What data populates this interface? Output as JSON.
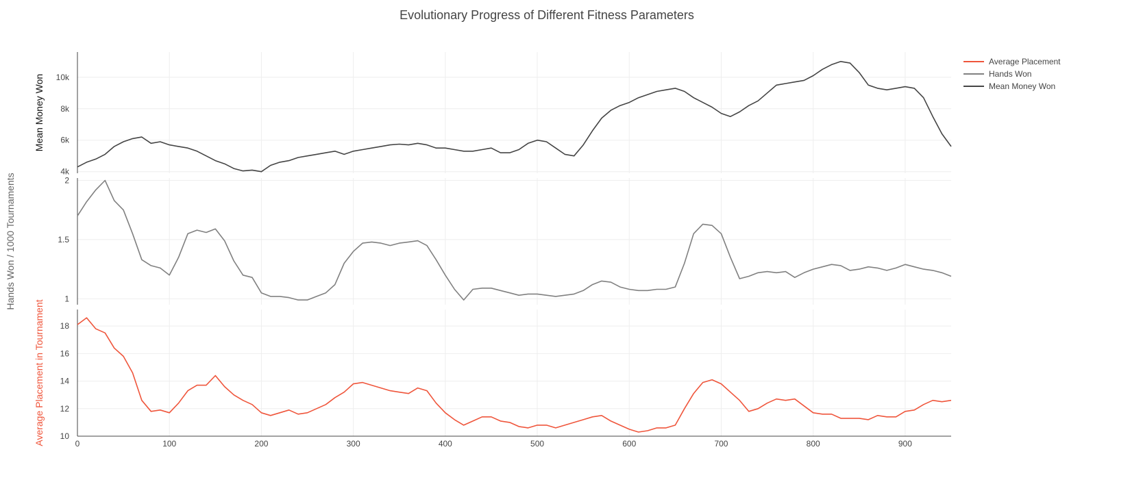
{
  "chart_data": {
    "type": "line",
    "title": "Evolutionary Progress of Different Fitness Parameters",
    "xlim": [
      0,
      950
    ],
    "xticks": [
      0,
      100,
      200,
      300,
      400,
      500,
      600,
      700,
      800,
      900
    ],
    "xtick_labels": [
      "0",
      "100",
      "200",
      "300",
      "400",
      "500",
      "600",
      "700",
      "800",
      "900"
    ],
    "grid": true,
    "legend_position": "top-right",
    "panels": [
      {
        "series": "Mean Money Won",
        "ylabel": "Mean Money Won",
        "ylim": [
          3900,
          11600
        ],
        "yticks": [
          4000,
          6000,
          8000,
          10000
        ],
        "ytick_labels": [
          "4k",
          "6k",
          "8k",
          "10k"
        ]
      },
      {
        "series": "Hands Won",
        "ylabel": "Hands Won / 1000 Tournaments",
        "ylim": [
          0.95,
          2.02
        ],
        "yticks": [
          1,
          1.5,
          2
        ],
        "ytick_labels": [
          "1",
          "1.5",
          "2"
        ]
      },
      {
        "series": "Average Placement",
        "ylabel": "Average Placement in Tournament",
        "ylim": [
          10,
          19.2
        ],
        "yticks": [
          10,
          12,
          14,
          16,
          18
        ],
        "ytick_labels": [
          "10",
          "12",
          "14",
          "16",
          "18"
        ]
      }
    ],
    "series": [
      {
        "name": "Average Placement",
        "color": "#ef553b",
        "x": [
          0,
          10,
          20,
          30,
          40,
          50,
          60,
          70,
          80,
          90,
          100,
          110,
          120,
          130,
          140,
          150,
          160,
          170,
          180,
          190,
          200,
          210,
          220,
          230,
          240,
          250,
          260,
          270,
          280,
          290,
          300,
          310,
          320,
          330,
          340,
          350,
          360,
          370,
          380,
          390,
          400,
          410,
          420,
          430,
          440,
          450,
          460,
          470,
          480,
          490,
          500,
          510,
          520,
          530,
          540,
          550,
          560,
          570,
          580,
          590,
          600,
          610,
          620,
          630,
          640,
          650,
          660,
          670,
          680,
          690,
          700,
          710,
          720,
          730,
          740,
          750,
          760,
          770,
          780,
          790,
          800,
          810,
          820,
          830,
          840,
          850,
          860,
          870,
          880,
          890,
          900,
          910,
          920,
          930,
          940,
          950
        ],
        "y": [
          18.1,
          18.6,
          17.8,
          17.5,
          16.4,
          15.8,
          14.6,
          12.6,
          11.8,
          11.9,
          11.7,
          12.4,
          13.3,
          13.7,
          13.7,
          14.4,
          13.6,
          13.0,
          12.6,
          12.3,
          11.7,
          11.5,
          11.7,
          11.9,
          11.6,
          11.7,
          12.0,
          12.3,
          12.8,
          13.2,
          13.8,
          13.9,
          13.7,
          13.5,
          13.3,
          13.2,
          13.1,
          13.5,
          13.3,
          12.4,
          11.7,
          11.2,
          10.8,
          11.1,
          11.4,
          11.4,
          11.1,
          11.0,
          10.7,
          10.6,
          10.8,
          10.8,
          10.6,
          10.8,
          11.0,
          11.2,
          11.4,
          11.5,
          11.1,
          10.8,
          10.5,
          10.3,
          10.4,
          10.6,
          10.6,
          10.8,
          12.0,
          13.1,
          13.9,
          14.1,
          13.8,
          13.2,
          12.6,
          11.8,
          12.0,
          12.4,
          12.7,
          12.6,
          12.7,
          12.2,
          11.7,
          11.6,
          11.6,
          11.3,
          11.3,
          11.3,
          11.2,
          11.5,
          11.4,
          11.4,
          11.8,
          11.9,
          12.3,
          12.6,
          12.5,
          12.6
        ]
      },
      {
        "name": "Hands Won",
        "color": "#808080",
        "x": [
          0,
          10,
          20,
          30,
          40,
          50,
          60,
          70,
          80,
          90,
          100,
          110,
          120,
          130,
          140,
          150,
          160,
          170,
          180,
          190,
          200,
          210,
          220,
          230,
          240,
          250,
          260,
          270,
          280,
          290,
          300,
          310,
          320,
          330,
          340,
          350,
          360,
          370,
          380,
          390,
          400,
          410,
          420,
          430,
          440,
          450,
          460,
          470,
          480,
          490,
          500,
          510,
          520,
          530,
          540,
          550,
          560,
          570,
          580,
          590,
          600,
          610,
          620,
          630,
          640,
          650,
          660,
          670,
          680,
          690,
          700,
          710,
          720,
          730,
          740,
          750,
          760,
          770,
          780,
          790,
          800,
          810,
          820,
          830,
          840,
          850,
          860,
          870,
          880,
          890,
          900,
          910,
          920,
          930,
          940,
          950
        ],
        "y": [
          1.7,
          1.82,
          1.92,
          2.0,
          1.83,
          1.75,
          1.55,
          1.33,
          1.28,
          1.26,
          1.2,
          1.35,
          1.55,
          1.58,
          1.56,
          1.59,
          1.49,
          1.32,
          1.2,
          1.18,
          1.05,
          1.02,
          1.02,
          1.01,
          0.99,
          0.99,
          1.02,
          1.05,
          1.12,
          1.3,
          1.4,
          1.47,
          1.48,
          1.47,
          1.45,
          1.47,
          1.48,
          1.49,
          1.45,
          1.33,
          1.2,
          1.08,
          0.99,
          1.08,
          1.09,
          1.09,
          1.07,
          1.05,
          1.03,
          1.04,
          1.04,
          1.03,
          1.02,
          1.03,
          1.04,
          1.07,
          1.12,
          1.15,
          1.14,
          1.1,
          1.08,
          1.07,
          1.07,
          1.08,
          1.08,
          1.1,
          1.3,
          1.55,
          1.63,
          1.62,
          1.55,
          1.35,
          1.17,
          1.19,
          1.22,
          1.23,
          1.22,
          1.23,
          1.18,
          1.22,
          1.25,
          1.27,
          1.29,
          1.28,
          1.24,
          1.25,
          1.27,
          1.26,
          1.24,
          1.26,
          1.29,
          1.27,
          1.25,
          1.24,
          1.22,
          1.19
        ]
      },
      {
        "name": "Mean Money Won",
        "color": "#444444",
        "x": [
          0,
          10,
          20,
          30,
          40,
          50,
          60,
          70,
          80,
          90,
          100,
          110,
          120,
          130,
          140,
          150,
          160,
          170,
          180,
          190,
          200,
          210,
          220,
          230,
          240,
          250,
          260,
          270,
          280,
          290,
          300,
          310,
          320,
          330,
          340,
          350,
          360,
          370,
          380,
          390,
          400,
          410,
          420,
          430,
          440,
          450,
          460,
          470,
          480,
          490,
          500,
          510,
          520,
          530,
          540,
          550,
          560,
          570,
          580,
          590,
          600,
          610,
          620,
          630,
          640,
          650,
          660,
          670,
          680,
          690,
          700,
          710,
          720,
          730,
          740,
          750,
          760,
          770,
          780,
          790,
          800,
          810,
          820,
          830,
          840,
          850,
          860,
          870,
          880,
          890,
          900,
          910,
          920,
          930,
          940,
          950
        ],
        "y": [
          4300,
          4600,
          4800,
          5100,
          5600,
          5900,
          6100,
          6200,
          5800,
          5900,
          5700,
          5600,
          5500,
          5300,
          5000,
          4700,
          4500,
          4200,
          4050,
          4100,
          4000,
          4400,
          4600,
          4700,
          4900,
          5000,
          5100,
          5200,
          5300,
          5100,
          5300,
          5400,
          5500,
          5600,
          5700,
          5750,
          5700,
          5800,
          5700,
          5500,
          5500,
          5400,
          5300,
          5300,
          5400,
          5500,
          5200,
          5200,
          5400,
          5800,
          6000,
          5900,
          5500,
          5100,
          5000,
          5700,
          6600,
          7400,
          7900,
          8200,
          8400,
          8700,
          8900,
          9100,
          9200,
          9300,
          9100,
          8700,
          8400,
          8100,
          7700,
          7500,
          7800,
          8200,
          8500,
          9000,
          9500,
          9600,
          9700,
          9800,
          10100,
          10500,
          10800,
          11000,
          10900,
          10300,
          9500,
          9300,
          9200,
          9300,
          9400,
          9300,
          8700,
          7500,
          6400,
          5600
        ]
      }
    ]
  }
}
